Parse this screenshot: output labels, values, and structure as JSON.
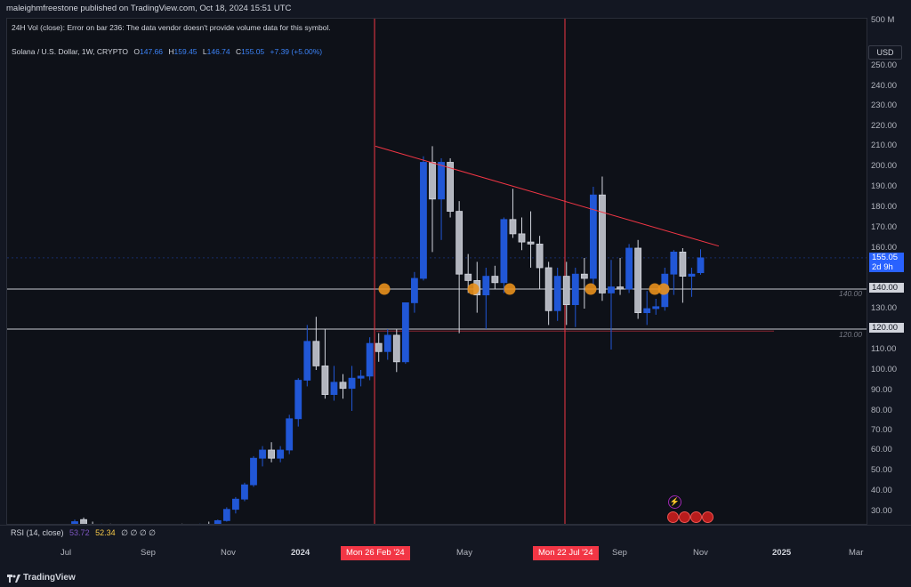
{
  "header": {
    "publisher": "maleighmfreestone published on TradingView.com, Oct 18, 2024 15:51 UTC"
  },
  "notice": "24H Vol (close): Error on bar 236: The data vendor doesn't provide volume data for this symbol.",
  "symbol": {
    "name": "Solana / U.S. Dollar, 1W, CRYPTO",
    "o_label": "O",
    "o": "147.66",
    "h_label": "H",
    "h": "159.45",
    "l_label": "L",
    "l": "146.74",
    "c_label": "C",
    "c": "155.05",
    "change": "+7.39 (+5.00%)"
  },
  "currency": "USD",
  "price_axis": {
    "ticks": [
      "500 M",
      "250.00",
      "240.00",
      "230.00",
      "220.00",
      "210.00",
      "200.00",
      "190.00",
      "180.00",
      "170.00",
      "160.00",
      "150.00",
      "140.00",
      "130.00",
      "120.00",
      "110.00",
      "100.00",
      "90.00",
      "80.00",
      "70.00",
      "60.00",
      "50.00",
      "40.00",
      "30.00"
    ],
    "last_price": "155.05",
    "countdown": "2d 9h",
    "level_140": "140.00",
    "level_120": "120.00",
    "line_label_140": "140.00",
    "line_label_120": "120.00"
  },
  "rsi": {
    "label": "RSI (14, close)",
    "v1": "53.72",
    "v2": "52.34",
    "rest": "∅ ∅ ∅ ∅"
  },
  "time_axis": {
    "labels": [
      "Jul",
      "Sep",
      "Nov",
      "2024",
      "May",
      "Sep",
      "Nov",
      "2025",
      "Mar"
    ],
    "marker1": "Mon 26 Feb '24",
    "marker2": "Mon 22 Jul '24"
  },
  "footer": {
    "brand": "TradingView"
  },
  "colors": {
    "up": "#2157d6",
    "down": "#d1d4dc",
    "marker": "#f23645",
    "accent": "#2962ff",
    "circle": "#e8901c"
  },
  "chart_data": {
    "type": "candlestick",
    "timeframe": "1W",
    "ylim": [
      20,
      255
    ],
    "candles": [
      {
        "o": 23,
        "h": 26,
        "l": 21,
        "c": 25
      },
      {
        "o": 26,
        "h": 27,
        "l": 23,
        "c": 23.5
      },
      {
        "o": 23.5,
        "h": 25,
        "l": 22,
        "c": 22.5
      },
      {
        "o": 22.5,
        "h": 24,
        "l": 21,
        "c": 23
      },
      {
        "o": 23,
        "h": 24,
        "l": 20.5,
        "c": 22
      },
      {
        "o": 22,
        "h": 23.5,
        "l": 20,
        "c": 21
      },
      {
        "o": 21,
        "h": 22,
        "l": 19.5,
        "c": 20.5
      },
      {
        "o": 20.5,
        "h": 22,
        "l": 19,
        "c": 21
      },
      {
        "o": 21,
        "h": 22.5,
        "l": 19.5,
        "c": 20
      },
      {
        "o": 20,
        "h": 21,
        "l": 18,
        "c": 19
      },
      {
        "o": 19,
        "h": 21,
        "l": 18,
        "c": 20.5
      },
      {
        "o": 20.5,
        "h": 23,
        "l": 19.5,
        "c": 22.5
      },
      {
        "o": 22.5,
        "h": 24,
        "l": 21,
        "c": 22
      },
      {
        "o": 22,
        "h": 23.5,
        "l": 20.5,
        "c": 21.5
      },
      {
        "o": 21.5,
        "h": 24,
        "l": 20.5,
        "c": 23.5
      },
      {
        "o": 23.5,
        "h": 25,
        "l": 21.5,
        "c": 22.5
      },
      {
        "o": 22.5,
        "h": 26,
        "l": 22,
        "c": 25.5
      },
      {
        "o": 25.5,
        "h": 32,
        "l": 25,
        "c": 31
      },
      {
        "o": 31,
        "h": 37,
        "l": 29,
        "c": 36
      },
      {
        "o": 36,
        "h": 44,
        "l": 35,
        "c": 43
      },
      {
        "o": 43,
        "h": 57,
        "l": 42,
        "c": 56
      },
      {
        "o": 56,
        "h": 62,
        "l": 52,
        "c": 60
      },
      {
        "o": 60,
        "h": 64,
        "l": 54,
        "c": 56
      },
      {
        "o": 56,
        "h": 62,
        "l": 54,
        "c": 60
      },
      {
        "o": 60,
        "h": 78,
        "l": 58,
        "c": 76
      },
      {
        "o": 76,
        "h": 96,
        "l": 72,
        "c": 95
      },
      {
        "o": 95,
        "h": 122,
        "l": 92,
        "c": 114
      },
      {
        "o": 114,
        "h": 126,
        "l": 100,
        "c": 102
      },
      {
        "o": 102,
        "h": 120,
        "l": 86,
        "c": 88
      },
      {
        "o": 88,
        "h": 102,
        "l": 85,
        "c": 94
      },
      {
        "o": 94,
        "h": 98,
        "l": 86,
        "c": 91
      },
      {
        "o": 91,
        "h": 102,
        "l": 80,
        "c": 96
      },
      {
        "o": 96,
        "h": 100,
        "l": 92,
        "c": 97
      },
      {
        "o": 97,
        "h": 116,
        "l": 95,
        "c": 113
      },
      {
        "o": 113,
        "h": 118,
        "l": 104,
        "c": 109
      },
      {
        "o": 109,
        "h": 120,
        "l": 105,
        "c": 117
      },
      {
        "o": 117,
        "h": 120,
        "l": 99,
        "c": 104
      },
      {
        "o": 104,
        "h": 133,
        "l": 103,
        "c": 133
      },
      {
        "o": 133,
        "h": 148,
        "l": 128,
        "c": 145
      },
      {
        "o": 145,
        "h": 205,
        "l": 144,
        "c": 202
      },
      {
        "o": 202,
        "h": 210,
        "l": 158,
        "c": 184
      },
      {
        "o": 184,
        "h": 204,
        "l": 164,
        "c": 202
      },
      {
        "o": 202,
        "h": 204,
        "l": 175,
        "c": 178
      },
      {
        "o": 178,
        "h": 183,
        "l": 118,
        "c": 147
      },
      {
        "o": 147,
        "h": 157,
        "l": 138,
        "c": 144
      },
      {
        "o": 144,
        "h": 153,
        "l": 128,
        "c": 137
      },
      {
        "o": 137,
        "h": 150,
        "l": 120,
        "c": 146
      },
      {
        "o": 146,
        "h": 151,
        "l": 140,
        "c": 143
      },
      {
        "o": 143,
        "h": 175,
        "l": 138,
        "c": 174
      },
      {
        "o": 174,
        "h": 189,
        "l": 165,
        "c": 167
      },
      {
        "o": 167,
        "h": 175,
        "l": 159,
        "c": 163
      },
      {
        "o": 163,
        "h": 178,
        "l": 150,
        "c": 162
      },
      {
        "o": 162,
        "h": 166,
        "l": 140,
        "c": 150
      },
      {
        "o": 150,
        "h": 153,
        "l": 122,
        "c": 129
      },
      {
        "o": 129,
        "h": 150,
        "l": 124,
        "c": 146
      },
      {
        "o": 146,
        "h": 153,
        "l": 122,
        "c": 132
      },
      {
        "o": 132,
        "h": 150,
        "l": 121,
        "c": 147
      },
      {
        "o": 147,
        "h": 155,
        "l": 130,
        "c": 145
      },
      {
        "o": 145,
        "h": 190,
        "l": 142,
        "c": 186
      },
      {
        "o": 186,
        "h": 195,
        "l": 134,
        "c": 138
      },
      {
        "o": 138,
        "h": 154,
        "l": 110,
        "c": 141
      },
      {
        "o": 141,
        "h": 155,
        "l": 137,
        "c": 140
      },
      {
        "o": 140,
        "h": 162,
        "l": 138,
        "c": 160
      },
      {
        "o": 160,
        "h": 164,
        "l": 125,
        "c": 128
      },
      {
        "o": 128,
        "h": 139,
        "l": 122,
        "c": 130
      },
      {
        "o": 130,
        "h": 135,
        "l": 127,
        "c": 131
      },
      {
        "o": 131,
        "h": 150,
        "l": 129,
        "c": 147
      },
      {
        "o": 147,
        "h": 159,
        "l": 137,
        "c": 158
      },
      {
        "o": 158,
        "h": 160,
        "l": 133,
        "c": 146
      },
      {
        "o": 146,
        "h": 150,
        "l": 136,
        "c": 147
      },
      {
        "o": 147.66,
        "h": 159.45,
        "l": 146.74,
        "c": 155.05
      }
    ],
    "horizontal_lines": [
      140,
      120
    ],
    "trendline": {
      "from": {
        "date": "Mar 2024",
        "price": 210
      },
      "to": {
        "date": "Nov 2024",
        "price": 161
      }
    },
    "vertical_markers": [
      "Mon 26 Feb '24",
      "Mon 22 Jul '24"
    ]
  }
}
